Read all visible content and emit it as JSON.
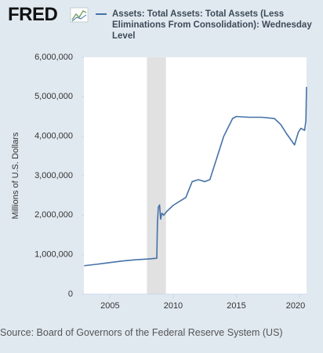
{
  "chart_data": {
    "type": "line",
    "logo": "FRED",
    "ylabel": "Millions of U.S. Dollars",
    "source": "Source: Board of Governors of the Federal Reserve System (US)",
    "x": [
      2002.95,
      2004.0,
      2005.0,
      2006.0,
      2007.0,
      2008.0,
      2008.7,
      2008.75,
      2008.82,
      2008.92,
      2009.0,
      2009.1,
      2009.25,
      2009.5,
      2010.0,
      2010.5,
      2011.0,
      2011.5,
      2012.0,
      2012.5,
      2012.9,
      2013.5,
      2014.0,
      2014.7,
      2015.0,
      2016.0,
      2017.0,
      2018.0,
      2018.5,
      2019.0,
      2019.6,
      2019.9,
      2020.1,
      2020.4,
      2020.5,
      2020.55
    ],
    "series": [
      {
        "name": "Assets: Total Assets: Total Assets (Less Eliminations From Consolidation): Wednesday Level",
        "color": "#4572a7",
        "values": [
          720000,
          760000,
          800000,
          840000,
          870000,
          890000,
          910000,
          1800000,
          2200000,
          2260000,
          1900000,
          2050000,
          2000000,
          2100000,
          2250000,
          2350000,
          2450000,
          2850000,
          2900000,
          2850000,
          2900000,
          3500000,
          4000000,
          4450000,
          4500000,
          4480000,
          4480000,
          4450000,
          4300000,
          4050000,
          3780000,
          4100000,
          4200000,
          4150000,
          4400000,
          5250000
        ]
      }
    ],
    "shaded_ranges": [
      [
        2007.92,
        2009.42
      ]
    ],
    "xlim": [
      2002.93,
      2020.55
    ],
    "xticks": [
      2005,
      2010,
      2015,
      2020
    ],
    "ylim": [
      0,
      6000000
    ],
    "yticks": [
      0,
      {
        "value": 1000000,
        "label": "1,000,000"
      },
      {
        "value": 2000000,
        "label": "2,000,000"
      },
      {
        "value": 3000000,
        "label": "3,000,000"
      },
      {
        "value": 4000000,
        "label": "4,000,000"
      },
      {
        "value": 5000000,
        "label": "5,000,000"
      },
      {
        "value": 6000000,
        "label": "6,000,000"
      }
    ],
    "grid": false
  }
}
